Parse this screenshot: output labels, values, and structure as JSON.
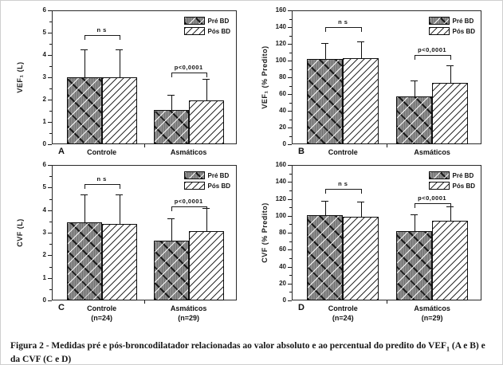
{
  "colors": {
    "pre_fill": "#8c8c8c",
    "pos_fill": "#ffffff",
    "axis": "#1a1a1a",
    "background": "#ffffff"
  },
  "caption": {
    "prefix": "Figura 2 - Medidas pré e pós-broncodilatador relacionadas ao valor absoluto e ao percentual do predito do VEF",
    "sub": "1",
    "suffix": " (A e B) e da CVF (C e D)"
  },
  "chart_data": [
    {
      "id": "A",
      "type": "bar",
      "ylabel": "VEF₁ (L)",
      "ylim": [
        0,
        6
      ],
      "ytick_step": 1,
      "minor_per_major": 1,
      "categories": [
        {
          "label": "Controle",
          "sub": ""
        },
        {
          "label": "Asmáticos",
          "sub": ""
        }
      ],
      "series": [
        {
          "name": "Pré BD",
          "pattern": "pre",
          "values": [
            3.0,
            1.55
          ],
          "errors": [
            1.25,
            0.68
          ]
        },
        {
          "name": "Pós BD",
          "pattern": "pos",
          "values": [
            3.0,
            1.97
          ],
          "errors": [
            1.25,
            0.95
          ]
        }
      ],
      "annotations": [
        {
          "group": 0,
          "label": "n s",
          "y": 4.9
        },
        {
          "group": 1,
          "label": "p<0,0001",
          "y": 3.2
        }
      ],
      "legend_position": "top-right",
      "grid": false
    },
    {
      "id": "B",
      "type": "bar",
      "ylabel": "VEF₁ (% Predito)",
      "ylim": [
        0,
        160
      ],
      "ytick_step": 20,
      "minor_per_major": 1,
      "categories": [
        {
          "label": "Controle",
          "sub": ""
        },
        {
          "label": "Asmáticos",
          "sub": ""
        }
      ],
      "series": [
        {
          "name": "Pré BD",
          "pattern": "pre",
          "values": [
            102,
            57
          ],
          "errors": [
            19,
            19
          ]
        },
        {
          "name": "Pós BD",
          "pattern": "pos",
          "values": [
            103,
            73
          ],
          "errors": [
            20,
            21
          ]
        }
      ],
      "annotations": [
        {
          "group": 0,
          "label": "n s",
          "y": 140
        },
        {
          "group": 1,
          "label": "p<0,0001",
          "y": 107
        }
      ],
      "legend_position": "top-right",
      "grid": false
    },
    {
      "id": "C",
      "type": "bar",
      "ylabel": "CVF (L)",
      "ylim": [
        0,
        6
      ],
      "ytick_step": 1,
      "minor_per_major": 1,
      "categories": [
        {
          "label": "Controle",
          "sub": "(n=24)"
        },
        {
          "label": "Asmáticos",
          "sub": "(n=29)"
        }
      ],
      "series": [
        {
          "name": "Pré BD",
          "pattern": "pre",
          "values": [
            3.45,
            2.63
          ],
          "errors": [
            1.25,
            1.02
          ]
        },
        {
          "name": "Pós BD",
          "pattern": "pos",
          "values": [
            3.4,
            3.07
          ],
          "errors": [
            1.3,
            1.03
          ]
        }
      ],
      "annotations": [
        {
          "group": 0,
          "label": "n s",
          "y": 5.15
        },
        {
          "group": 1,
          "label": "p<0,0001",
          "y": 4.15
        }
      ],
      "legend_position": "top-right",
      "grid": false
    },
    {
      "id": "D",
      "type": "bar",
      "ylabel": "CVF (% Predito)",
      "ylim": [
        0,
        160
      ],
      "ytick_step": 20,
      "minor_per_major": 1,
      "categories": [
        {
          "label": "Controle",
          "sub": "(n=24)"
        },
        {
          "label": "Asmáticos",
          "sub": "(n=29)"
        }
      ],
      "series": [
        {
          "name": "Pré BD",
          "pattern": "pre",
          "values": [
            101,
            82
          ],
          "errors": [
            17,
            20
          ]
        },
        {
          "name": "Pós BD",
          "pattern": "pos",
          "values": [
            99,
            94
          ],
          "errors": [
            18,
            17
          ]
        }
      ],
      "annotations": [
        {
          "group": 0,
          "label": "n s",
          "y": 132
        },
        {
          "group": 1,
          "label": "p<0,0001",
          "y": 115
        }
      ],
      "legend_position": "top-right",
      "grid": false
    }
  ]
}
